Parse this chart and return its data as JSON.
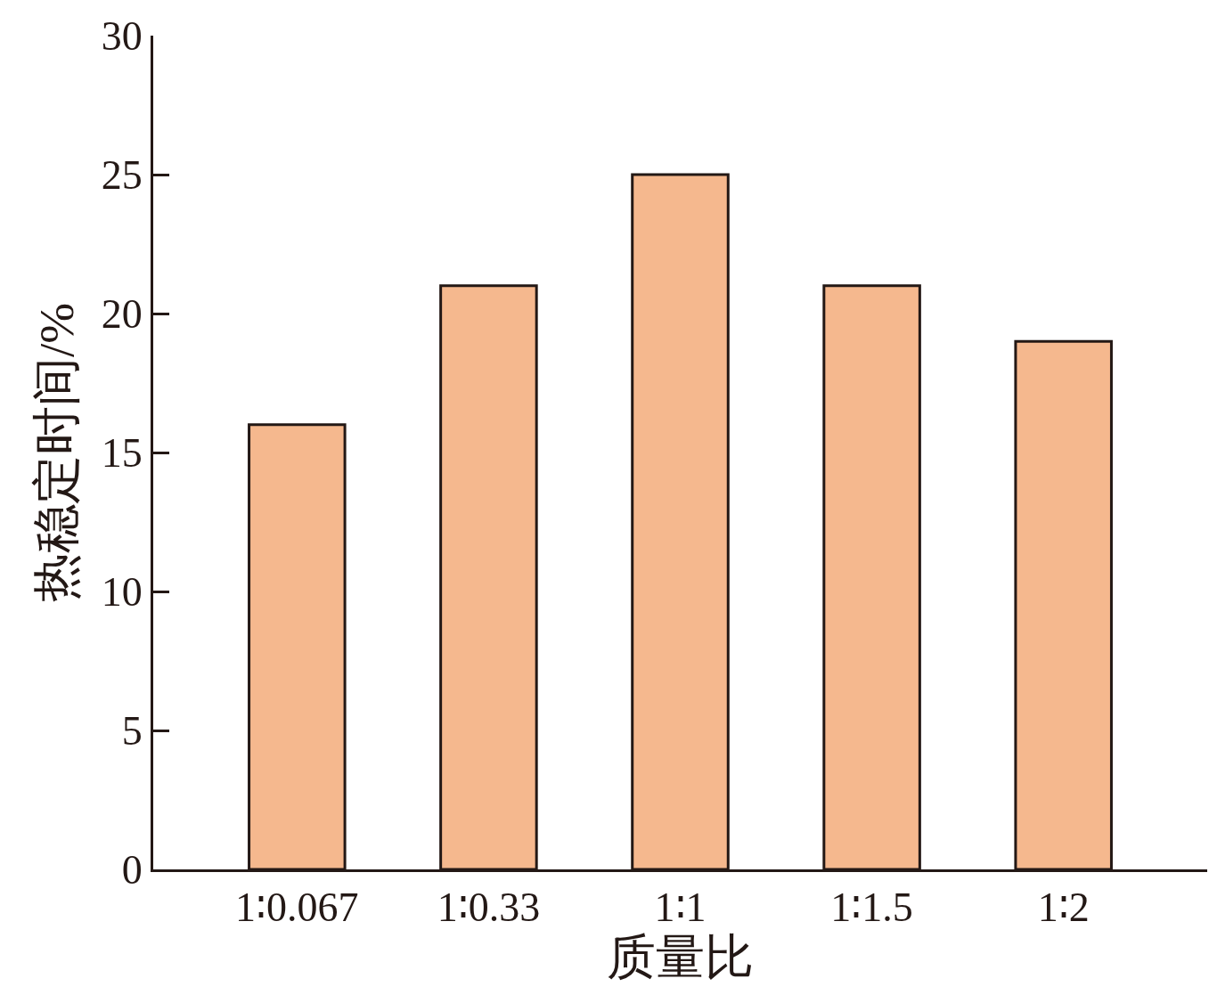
{
  "chart_data": {
    "type": "bar",
    "xlabel": "质量比",
    "ylabel": "热稳定时间/%",
    "categories": [
      "1∶0.067",
      "1∶0.33",
      "1∶1",
      "1∶1.5",
      "1∶2"
    ],
    "values": [
      16,
      21,
      25,
      21,
      19
    ],
    "color": "#f5b88e",
    "ylim": [
      0,
      30
    ],
    "yticks": [
      0,
      5,
      10,
      15,
      20,
      25,
      30
    ],
    "grid": false,
    "legend": false
  }
}
